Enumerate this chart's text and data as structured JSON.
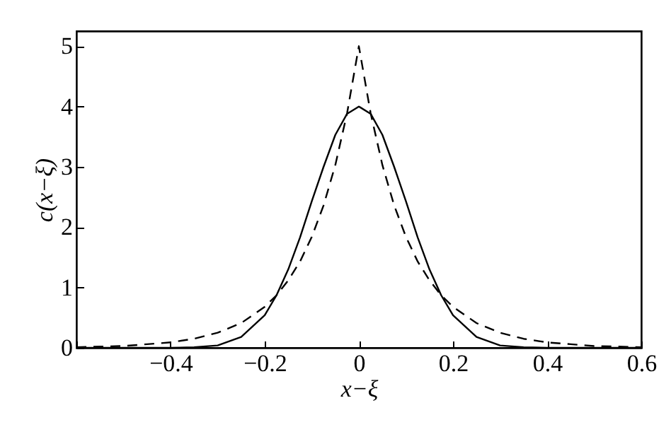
{
  "chart_data": {
    "type": "line",
    "xlabel": "x−ξ",
    "ylabel": "c(x−ξ)",
    "x": [
      -0.6,
      -0.55,
      -0.5,
      -0.45,
      -0.4,
      -0.35,
      -0.3,
      -0.25,
      -0.2,
      -0.175,
      -0.15,
      -0.125,
      -0.1,
      -0.075,
      -0.05,
      -0.025,
      0,
      0.025,
      0.05,
      0.075,
      0.1,
      0.125,
      0.15,
      0.175,
      0.2,
      0.25,
      0.3,
      0.35,
      0.4,
      0.45,
      0.5,
      0.55,
      0.6
    ],
    "series": [
      {
        "color": "#000000",
        "line_style": "solid",
        "values": [
          0,
          0,
          0,
          0,
          0,
          0.01,
          0.04,
          0.18,
          0.54,
          0.87,
          1.3,
          1.83,
          2.43,
          3.0,
          3.53,
          3.88,
          4,
          3.88,
          3.53,
          3.0,
          2.43,
          1.83,
          1.3,
          0.87,
          0.54,
          0.18,
          0.04,
          0.01,
          0,
          0,
          0,
          0,
          0
        ]
      },
      {
        "color": "#000000",
        "line_style": "dashed",
        "values": [
          0.01,
          0.02,
          0.03,
          0.06,
          0.09,
          0.15,
          0.25,
          0.41,
          0.68,
          0.87,
          1.12,
          1.43,
          1.84,
          2.36,
          3.03,
          3.89,
          5,
          3.89,
          3.03,
          2.36,
          1.84,
          1.43,
          1.12,
          0.87,
          0.68,
          0.41,
          0.25,
          0.15,
          0.09,
          0.06,
          0.03,
          0.02,
          0.01
        ]
      }
    ],
    "xlim": [
      -0.6,
      0.6
    ],
    "xticks": [
      {
        "value": -0.6,
        "label": null
      },
      -0.4,
      -0.2,
      0,
      0.2,
      0.4,
      0.6
    ],
    "ylim": [
      0,
      5.25
    ],
    "yticks": [
      0,
      1,
      2,
      3,
      4,
      5
    ],
    "grid": false
  }
}
